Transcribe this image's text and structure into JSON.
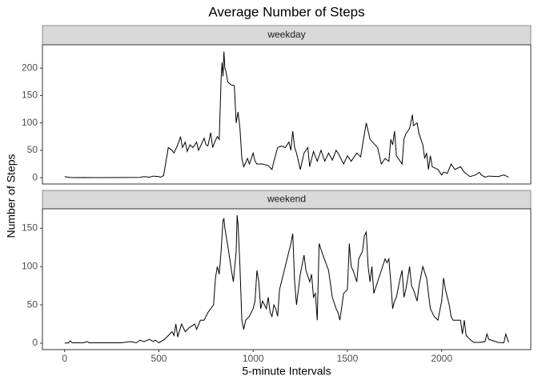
{
  "chart_data": {
    "type": "line",
    "title": "Average Number of Steps",
    "x_label": "5-minute Intervals",
    "y_label": "Number of Steps",
    "xlim": [
      -117.75,
      2472.75
    ],
    "xticks": [
      0,
      500,
      1000,
      1500,
      2000
    ],
    "color": "#000000",
    "grid": false,
    "panels": [
      {
        "title": "weekday",
        "ylim": [
          -11.5,
          242.5
        ],
        "yticks": [
          0,
          50,
          100,
          150,
          200
        ],
        "x": [
          0,
          25,
          50,
          100,
          150,
          200,
          300,
          400,
          420,
          450,
          470,
          500,
          510,
          525,
          550,
          570,
          580,
          600,
          615,
          625,
          640,
          650,
          665,
          680,
          700,
          710,
          720,
          740,
          750,
          760,
          775,
          785,
          800,
          810,
          820,
          830,
          835,
          840,
          845,
          850,
          855,
          860,
          865,
          880,
          900,
          910,
          920,
          930,
          940,
          950,
          970,
          980,
          1000,
          1010,
          1020,
          1050,
          1080,
          1100,
          1110,
          1130,
          1150,
          1170,
          1190,
          1200,
          1210,
          1220,
          1230,
          1250,
          1270,
          1290,
          1300,
          1320,
          1340,
          1360,
          1380,
          1400,
          1420,
          1440,
          1450,
          1480,
          1500,
          1520,
          1550,
          1570,
          1600,
          1620,
          1660,
          1670,
          1680,
          1700,
          1720,
          1730,
          1740,
          1750,
          1760,
          1790,
          1800,
          1810,
          1830,
          1845,
          1850,
          1870,
          1880,
          1900,
          1910,
          1920,
          1930,
          1940,
          1950,
          1980,
          2000,
          2010,
          2030,
          2050,
          2070,
          2100,
          2120,
          2150,
          2180,
          2200,
          2210,
          2230,
          2250,
          2300,
          2330,
          2355
        ],
        "values": [
          2,
          0.5,
          0.2,
          0.4,
          0.2,
          0.1,
          0.3,
          0.5,
          2,
          1,
          3,
          2,
          1,
          4,
          55,
          50,
          45,
          60,
          75,
          55,
          65,
          48,
          60,
          55,
          65,
          50,
          57,
          72,
          60,
          58,
          82,
          55,
          68,
          75,
          70,
          180,
          210,
          185,
          230,
          200,
          195,
          185,
          175,
          170,
          168,
          100,
          120,
          90,
          35,
          20,
          35,
          25,
          45,
          30,
          25,
          25,
          22,
          15,
          30,
          55,
          58,
          55,
          65,
          50,
          85,
          55,
          45,
          15,
          45,
          55,
          20,
          48,
          30,
          50,
          30,
          45,
          32,
          50,
          45,
          25,
          40,
          30,
          45,
          38,
          100,
          70,
          55,
          40,
          25,
          35,
          30,
          70,
          60,
          85,
          40,
          25,
          70,
          80,
          90,
          115,
          95,
          100,
          80,
          60,
          35,
          45,
          15,
          40,
          20,
          15,
          5,
          10,
          8,
          25,
          15,
          20,
          10,
          2,
          5,
          10,
          5,
          1,
          3,
          2,
          5,
          1
        ]
      },
      {
        "title": "weekend",
        "ylim": [
          -8.4,
          175.4
        ],
        "yticks": [
          0,
          50,
          100,
          150
        ],
        "x": [
          0,
          20,
          30,
          40,
          100,
          120,
          130,
          200,
          300,
          350,
          380,
          400,
          420,
          450,
          470,
          480,
          500,
          530,
          550,
          570,
          580,
          590,
          600,
          620,
          640,
          660,
          690,
          700,
          720,
          740,
          760,
          790,
          800,
          810,
          820,
          830,
          840,
          845,
          850,
          870,
          885,
          895,
          910,
          915,
          920,
          930,
          940,
          950,
          960,
          980,
          1000,
          1010,
          1020,
          1030,
          1040,
          1050,
          1070,
          1080,
          1090,
          1100,
          1110,
          1120,
          1130,
          1140,
          1160,
          1180,
          1200,
          1210,
          1220,
          1230,
          1250,
          1270,
          1280,
          1300,
          1310,
          1320,
          1330,
          1340,
          1350,
          1370,
          1400,
          1420,
          1440,
          1450,
          1460,
          1480,
          1500,
          1510,
          1520,
          1530,
          1550,
          1560,
          1580,
          1590,
          1600,
          1610,
          1620,
          1630,
          1640,
          1660,
          1680,
          1700,
          1710,
          1720,
          1730,
          1740,
          1750,
          1760,
          1780,
          1790,
          1800,
          1810,
          1830,
          1840,
          1850,
          1870,
          1880,
          1900,
          1920,
          1940,
          1960,
          1980,
          2000,
          2010,
          2020,
          2040,
          2050,
          2060,
          2070,
          2100,
          2110,
          2120,
          2130,
          2150,
          2170,
          2200,
          2230,
          2240,
          2250,
          2300,
          2330,
          2340,
          2355
        ],
        "values": [
          0.2,
          0.2,
          3,
          0.5,
          0.5,
          2,
          0.5,
          0.5,
          0.5,
          2,
          0.5,
          4,
          2,
          5,
          2,
          4,
          0.5,
          5,
          10,
          15,
          10,
          25,
          8,
          25,
          15,
          20,
          25,
          18,
          30,
          30,
          40,
          50,
          85,
          100,
          90,
          120,
          160,
          163,
          150,
          120,
          95,
          80,
          120,
          167,
          155,
          100,
          30,
          18,
          30,
          35,
          45,
          55,
          95,
          80,
          45,
          55,
          45,
          60,
          40,
          35,
          50,
          45,
          35,
          70,
          90,
          110,
          130,
          143,
          80,
          50,
          90,
          115,
          95,
          80,
          90,
          60,
          65,
          30,
          130,
          115,
          95,
          60,
          45,
          40,
          30,
          65,
          70,
          130,
          100,
          95,
          80,
          110,
          120,
          140,
          145,
          100,
          80,
          100,
          65,
          80,
          95,
          110,
          105,
          110,
          80,
          45,
          55,
          60,
          85,
          95,
          60,
          70,
          100,
          75,
          70,
          55,
          75,
          100,
          85,
          45,
          35,
          30,
          55,
          85,
          70,
          50,
          35,
          30,
          30,
          30,
          12,
          30,
          10,
          5,
          1,
          1,
          2,
          12,
          5,
          1,
          0.5,
          12,
          1
        ]
      }
    ]
  }
}
